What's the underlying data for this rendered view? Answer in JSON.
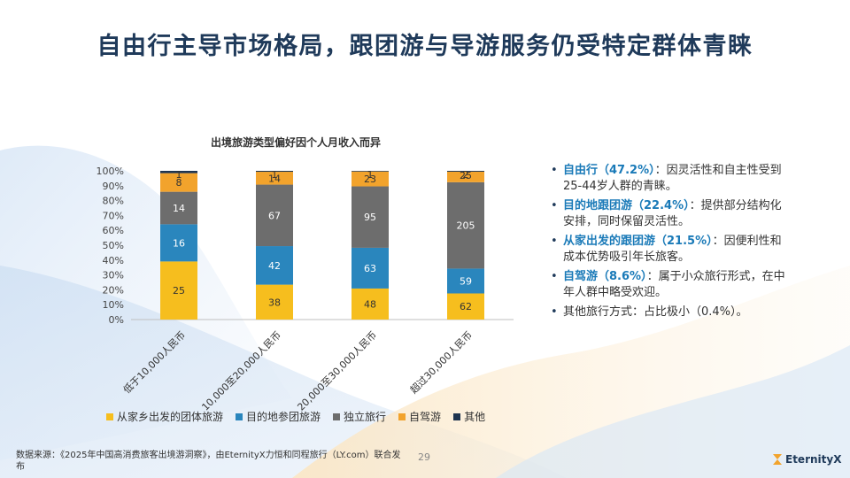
{
  "page": {
    "title": "自由行主导市场格局，跟团游与导游服务仍受特定群体青睐",
    "page_number": "29",
    "source": "数据来源：《2025年中国高消费旅客出境游洞察》，由EternityX力恒和同程旅行（LY.com）联合发布",
    "logo_text": "EternityX",
    "logo_icon": "hourglass-icon"
  },
  "colors": {
    "group_tour": "#f6be1e",
    "local_tour": "#2a86bd",
    "independent": "#6d6d6d",
    "self_drive": "#f2a32c",
    "other": "#1f3550"
  },
  "bullets": [
    {
      "highlight": "自由行（47.2%）",
      "text": "：因灵活性和自主性受到25-44岁人群的青睐。"
    },
    {
      "highlight": "目的地跟团游（22.4%）",
      "text": "：提供部分结构化安排，同时保留灵活性。"
    },
    {
      "highlight": "从家出发的跟团游（21.5%）",
      "text": "：因便利性和成本优势吸引年长旅客。"
    },
    {
      "highlight": "自驾游（8.6%）",
      "text": "：属于小众旅行形式，在中年人群中略受欢迎。"
    },
    {
      "highlight": "",
      "text": "其他旅行方式：占比极小（0.4%）。"
    }
  ],
  "chart_data": {
    "type": "bar",
    "stacked": "percent",
    "title": "出境旅游类型偏好因个人月收入而异",
    "xlabel": "",
    "ylabel": "",
    "ylim": [
      0,
      100
    ],
    "yticks": [
      "0%",
      "10%",
      "20%",
      "30%",
      "40%",
      "50%",
      "60%",
      "70%",
      "80%",
      "90%",
      "100%"
    ],
    "grid": false,
    "legend_position": "bottom",
    "categories": [
      "低于10,000人民币",
      "10,000至20,000人民币",
      "20,000至30,000人民币",
      "超过30,000人民币"
    ],
    "series": [
      {
        "name": "从家乡出发的团体旅游",
        "values": [
          25,
          38,
          48,
          62
        ],
        "color": "#f6be1e"
      },
      {
        "name": "目的地参团旅游",
        "values": [
          16,
          42,
          63,
          59
        ],
        "color": "#2a86bd"
      },
      {
        "name": "独立旅行",
        "values": [
          14,
          67,
          95,
          205
        ],
        "color": "#6d6d6d"
      },
      {
        "name": "自驾游",
        "values": [
          8,
          14,
          23,
          25
        ],
        "color": "#f2a32c"
      },
      {
        "name": "其他",
        "values": [
          1,
          1,
          1,
          2
        ],
        "color": "#1f3550"
      }
    ]
  }
}
